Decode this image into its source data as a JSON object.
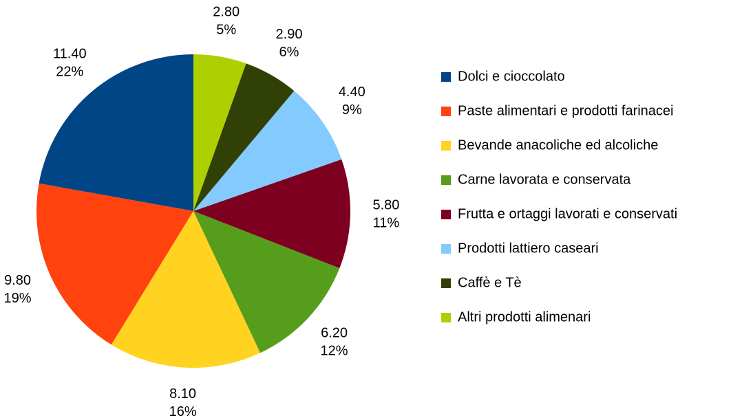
{
  "chart_data": {
    "type": "pie",
    "categories": [
      "Dolci e cioccolato",
      "Paste alimentari e prodotti farinacei",
      "Bevande anacoliche ed alcoliche",
      "Carne lavorata e conservata",
      "Frutta e ortaggi lavorati e conservati",
      "Prodotti lattiero caseari",
      "Caffè e Tè",
      "Altri prodotti alimenari"
    ],
    "values": [
      11.4,
      9.8,
      8.1,
      6.2,
      5.8,
      4.4,
      2.9,
      2.8
    ],
    "value_labels": [
      "11.40",
      "9.80",
      "8.10",
      "6.20",
      "5.80",
      "4.40",
      "2.90",
      "2.80"
    ],
    "percent_labels": [
      "22%",
      "19%",
      "16%",
      "12%",
      "11%",
      "9%",
      "6%",
      "5%"
    ],
    "colors": [
      "#004586",
      "#ff420e",
      "#ffd320",
      "#579d1c",
      "#7e0021",
      "#83caff",
      "#314004",
      "#aecf00"
    ],
    "legend": "right"
  }
}
